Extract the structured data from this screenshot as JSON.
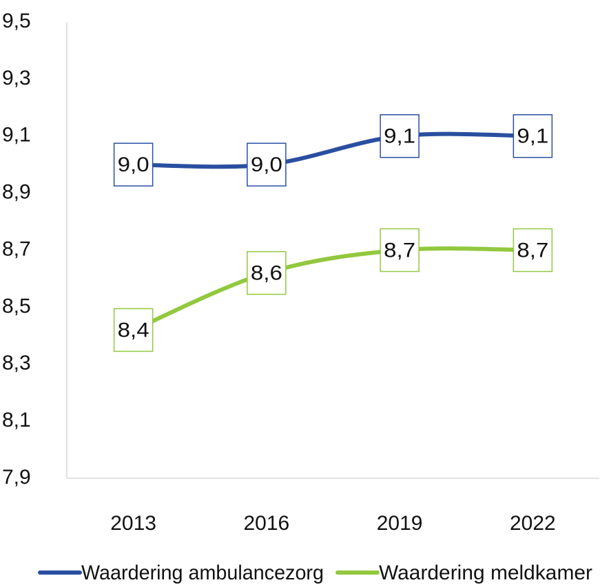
{
  "chart_data": {
    "type": "line",
    "categories": [
      "2013",
      "2016",
      "2019",
      "2022"
    ],
    "series": [
      {
        "name": "Waardering ambulancezorg",
        "color": "#2a4fa0",
        "values": [
          9.0,
          9.0,
          9.1,
          9.1
        ],
        "value_labels": [
          "9,0",
          "9,0",
          "9,1",
          "9,1"
        ]
      },
      {
        "name": "Waardering meldkamer",
        "color": "#92c83e",
        "values": [
          8.42,
          8.62,
          8.7,
          8.7
        ],
        "value_labels": [
          "8,4",
          "8,6",
          "8,7",
          "8,7"
        ]
      }
    ],
    "ylim": [
      7.9,
      9.5
    ],
    "yticks": [
      {
        "value": 7.9,
        "label": "7,9"
      },
      {
        "value": 8.1,
        "label": "8,1"
      },
      {
        "value": 8.3,
        "label": "8,3"
      },
      {
        "value": 8.5,
        "label": "8,5"
      },
      {
        "value": 8.7,
        "label": "8,7"
      },
      {
        "value": 8.9,
        "label": "8,9"
      },
      {
        "value": 9.1,
        "label": "9,1"
      },
      {
        "value": 9.3,
        "label": "9,3"
      },
      {
        "value": 9.5,
        "label": "9,5"
      }
    ],
    "grid": false,
    "legend": "bottom"
  }
}
